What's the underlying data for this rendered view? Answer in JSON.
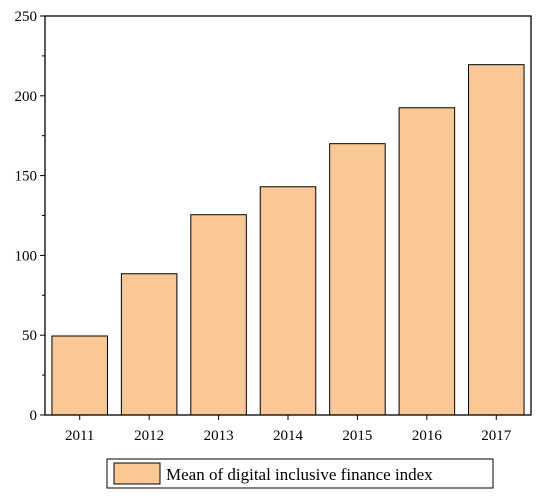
{
  "chart_data": {
    "type": "bar",
    "categories": [
      "2011",
      "2012",
      "2013",
      "2014",
      "2015",
      "2016",
      "2017"
    ],
    "series": [
      {
        "name": "Mean of digital inclusive finance index",
        "values": [
          49.5,
          88.5,
          125.5,
          143.0,
          170.0,
          192.5,
          219.5
        ]
      }
    ],
    "title": "",
    "xlabel": "",
    "ylabel": "",
    "ylim": [
      0,
      250
    ],
    "yticks": [
      0,
      50,
      100,
      150,
      200,
      250
    ],
    "grid": false,
    "legend_position": "bottom",
    "bar_color": "#f9c896",
    "edge_color": "#000000"
  }
}
